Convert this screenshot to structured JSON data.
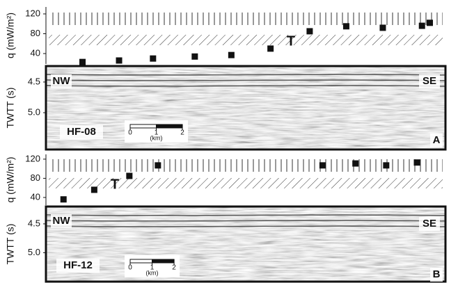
{
  "chart_data": [
    {
      "type": "scatter",
      "y_label": "q (mW/m²)",
      "annotation": "T",
      "color": "#111111",
      "x": [
        1.4,
        2.8,
        4.1,
        5.7,
        7.1,
        8.6,
        10.1,
        11.5,
        12.9,
        14.4,
        14.7
      ],
      "values": [
        23,
        26,
        30,
        34,
        37,
        50,
        85,
        95,
        92,
        96,
        102
      ],
      "xlim": [
        0,
        15.3
      ],
      "ylim": [
        19,
        134
      ],
      "yticks": [
        40,
        80,
        120
      ],
      "seismic": {
        "y_label": "TWTT (s)",
        "ylim": [
          4.24,
          5.6
        ],
        "yticks": [
          4.5,
          {
            "value": 5,
            "label": "5.0"
          }
        ],
        "left_label": "NW",
        "right_label": "SE",
        "line_name": "HF-08",
        "panel_label": "A"
      },
      "scale_bar": {
        "ticks": [
          0,
          1,
          2
        ],
        "unit": "(km)"
      }
    },
    {
      "type": "scatter",
      "y_label": "q (mW/m²)",
      "annotation": "T",
      "color": "#111111",
      "x": [
        0.8,
        2.2,
        3.8,
        5.1,
        12.6,
        14.1,
        15.5,
        16.9
      ],
      "values": [
        36,
        56,
        85,
        107,
        107,
        111,
        107,
        113
      ],
      "xlim": [
        0,
        18.2
      ],
      "ylim": [
        24,
        130
      ],
      "yticks": [
        40,
        80,
        120
      ],
      "seismic": {
        "y_label": "TWTT (s)",
        "ylim": [
          4.2,
          5.5
        ],
        "yticks": [
          4.5,
          {
            "value": 5,
            "label": "5.0"
          }
        ],
        "left_label": "NW",
        "right_label": "SE",
        "line_name": "HF-12",
        "panel_label": "B"
      },
      "scale_bar": {
        "ticks": [
          0,
          1,
          2
        ],
        "unit": "(km)"
      }
    }
  ]
}
